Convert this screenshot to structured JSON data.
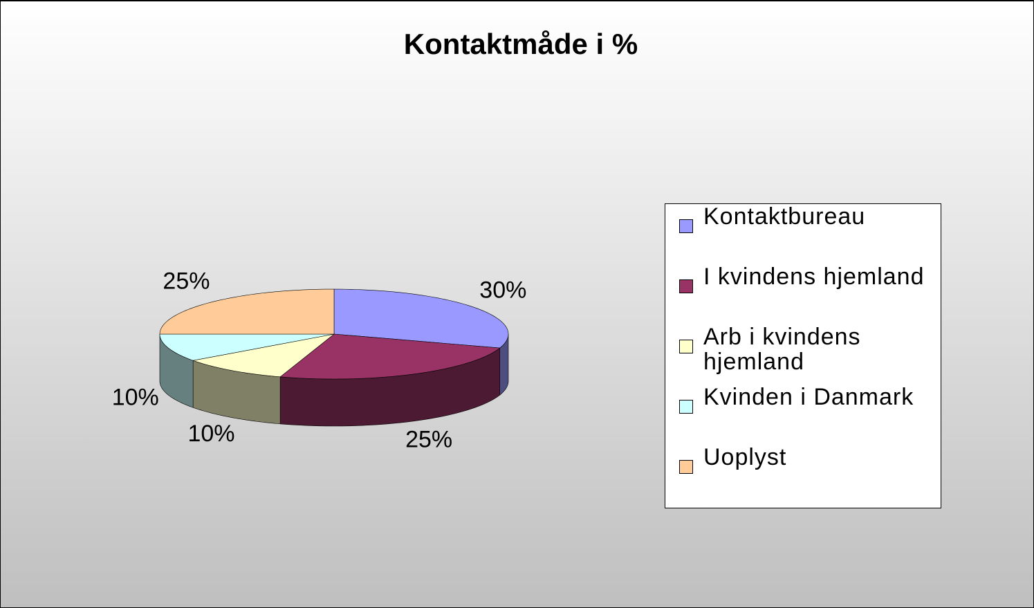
{
  "chart_data": {
    "type": "pie",
    "title": "Kontaktmåde i %",
    "categories": [
      "Kontaktbureau",
      "I kvindens hjemland",
      "Arb i kvindens hjemland",
      "Kvinden i Danmark",
      "Uoplyst"
    ],
    "values": [
      30,
      25,
      10,
      10,
      25
    ],
    "value_labels": [
      "30%",
      "25%",
      "10%",
      "10%",
      "25%"
    ],
    "colors": [
      "#9999ff",
      "#993366",
      "#ffffcc",
      "#ccffff",
      "#ffcc99"
    ],
    "legend": "right"
  }
}
